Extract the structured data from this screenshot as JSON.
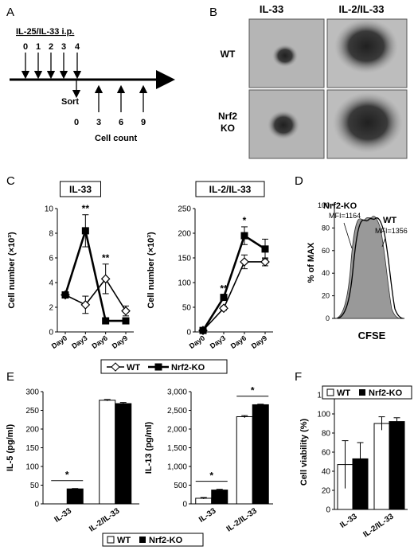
{
  "panels": {
    "A": {
      "letter": "A",
      "injection_label": "IL-25/IL-33 i.p.",
      "injection_days": [
        "0",
        "1",
        "2",
        "3",
        "4"
      ],
      "sort_label": "Sort",
      "count_days": [
        "0",
        "3",
        "6",
        "9"
      ],
      "count_label": "Cell count"
    },
    "B": {
      "letter": "B",
      "col_headers": [
        "IL-33",
        "IL-2/IL-33"
      ],
      "row_labels": [
        "WT",
        "Nrf2\nKO"
      ]
    },
    "C": {
      "letter": "C"
    },
    "D": {
      "letter": "D",
      "ylabel": "% of MAX",
      "xlabel": "CFSE",
      "yticks": [
        "0",
        "20",
        "40",
        "60",
        "80",
        "100"
      ],
      "labels": [
        {
          "name": "Nrf2-KO",
          "mfi": "MFI=1164"
        },
        {
          "name": "WT",
          "mfi": "MFI=1356"
        }
      ]
    },
    "E": {
      "letter": "E"
    },
    "F": {
      "letter": "F"
    }
  },
  "legends": {
    "C": [
      "WT",
      "Nrf2-KO"
    ],
    "E": [
      "WT",
      "Nrf2-KO"
    ],
    "F": [
      "WT",
      "Nrf2-KO"
    ]
  },
  "colors": {
    "wt": "#ffffff",
    "ko": "#000000",
    "hist_fill": "#999999",
    "micro_bg": "#b5b5b5"
  },
  "chart_data": [
    {
      "id": "C1",
      "type": "line",
      "title": "IL-33",
      "ylabel": "Cell number (×10³)",
      "categories": [
        "Day0",
        "Day3",
        "Day6",
        "Day9"
      ],
      "ylim": [
        0,
        10
      ],
      "yticks": [
        0,
        2,
        4,
        6,
        8,
        10
      ],
      "series": [
        {
          "name": "WT",
          "values": [
            3,
            2.2,
            4.3,
            1.7
          ],
          "errors": [
            0.1,
            0.7,
            1.2,
            0.4
          ]
        },
        {
          "name": "Nrf2-KO",
          "values": [
            3,
            8.2,
            0.9,
            0.9
          ],
          "errors": [
            0.1,
            1.3,
            0.1,
            0.1
          ]
        }
      ],
      "annotations": [
        {
          "category": "Day3",
          "text": "**"
        },
        {
          "category": "Day6",
          "text": "**"
        }
      ]
    },
    {
      "id": "C2",
      "type": "line",
      "title": "IL-2/IL-33",
      "ylabel": "Cell number (×10³)",
      "categories": [
        "Day0",
        "Day3",
        "Day6",
        "Day9"
      ],
      "ylim": [
        0,
        250
      ],
      "yticks": [
        0,
        50,
        100,
        150,
        200,
        250
      ],
      "series": [
        {
          "name": "WT",
          "values": [
            3,
            48,
            142,
            142
          ],
          "errors": [
            1,
            4,
            14,
            8
          ]
        },
        {
          "name": "Nrf2-KO",
          "values": [
            3,
            70,
            195,
            168
          ],
          "errors": [
            1,
            5,
            18,
            20
          ]
        }
      ],
      "annotations": [
        {
          "category": "Day3",
          "text": "**"
        },
        {
          "category": "Day6",
          "text": "*"
        }
      ]
    },
    {
      "id": "E1",
      "type": "bar",
      "ylabel": "IL-5 (pg/ml)",
      "categories": [
        "IL-33",
        "IL-2/IL-33"
      ],
      "ylim": [
        0,
        300
      ],
      "yticks": [
        "0",
        "50",
        "100",
        "150",
        "200",
        "250",
        "300"
      ],
      "series": [
        {
          "name": "WT",
          "values": [
            0,
            277
          ],
          "errors": [
            0,
            2
          ]
        },
        {
          "name": "Nrf2-KO",
          "values": [
            40,
            268
          ],
          "errors": [
            1,
            3
          ]
        }
      ],
      "annotations": [
        {
          "category": "IL-33",
          "text": "*"
        }
      ]
    },
    {
      "id": "E2",
      "type": "bar",
      "ylabel": "IL-13 (pg/ml)",
      "categories": [
        "IL-33",
        "IL-2/IL-33"
      ],
      "ylim": [
        0,
        3000
      ],
      "yticks": [
        "0",
        "500",
        "1,000",
        "1,500",
        "2,000",
        "2,500",
        "3,000"
      ],
      "series": [
        {
          "name": "WT",
          "values": [
            150,
            2330
          ],
          "errors": [
            20,
            30
          ]
        },
        {
          "name": "Nrf2-KO",
          "values": [
            370,
            2650
          ],
          "errors": [
            20,
            15
          ]
        }
      ],
      "annotations": [
        {
          "category": "IL-33",
          "text": "*"
        },
        {
          "category": "IL-2/IL-33",
          "text": "*"
        }
      ]
    },
    {
      "id": "F",
      "type": "bar",
      "ylabel": "Cell viability (%)",
      "categories": [
        "IL-33",
        "IL-2/IL-33"
      ],
      "ylim": [
        0,
        120
      ],
      "yticks": [
        "0",
        "20",
        "40",
        "60",
        "80",
        "100",
        "120"
      ],
      "series": [
        {
          "name": "WT",
          "values": [
            47,
            90
          ],
          "errors": [
            25,
            7
          ]
        },
        {
          "name": "Nrf2-KO",
          "values": [
            53,
            92
          ],
          "errors": [
            17,
            4
          ]
        }
      ]
    }
  ]
}
